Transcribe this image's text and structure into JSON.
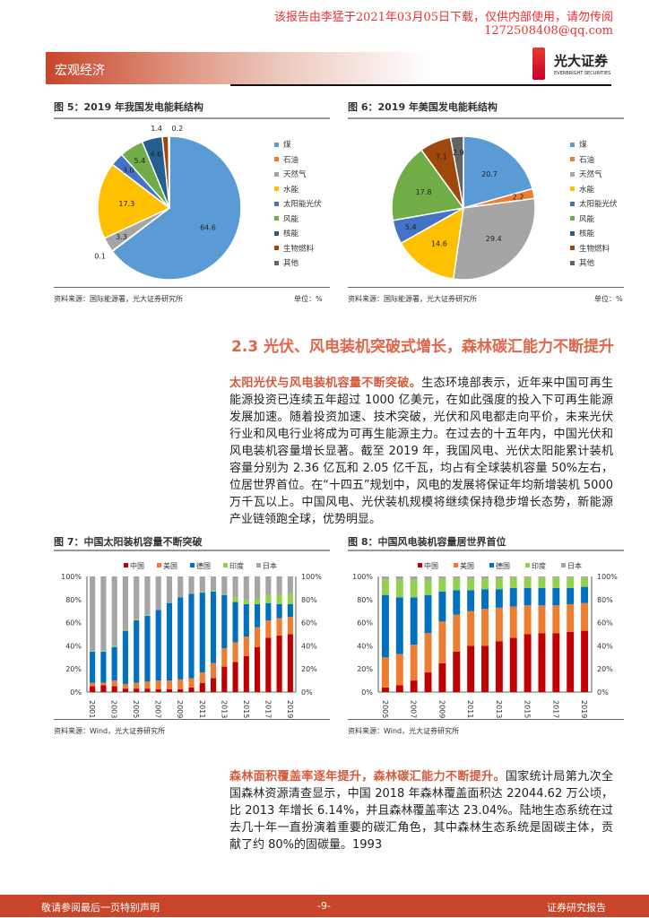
{
  "watermark": {
    "line1": "该报告由李猛于2021年03月05日下载，仅供内部使用，请勿传阅",
    "line2": "1272508408@qq.com"
  },
  "header": {
    "section": "宏观经济",
    "logo_cn": "光大证券",
    "logo_en": "EVERBRIGHT SECURITIES"
  },
  "colors": {
    "accent": "#c8452a",
    "heading": "#e0664a"
  },
  "figures": {
    "fig5": {
      "title": "图 5：2019 年我国发电能耗结构",
      "source": "资料来源：国际能源署，光大证券研究所",
      "unit": "单位：%"
    },
    "fig6": {
      "title": "图 6：2019 年美国发电能耗结构",
      "source": "资料来源：国际能源署，光大证券研究所",
      "unit": "单位：%"
    },
    "fig7": {
      "title": "图 7：中国太阳装机容量不断突破",
      "source": "资料来源：Wind，光大证券研究所"
    },
    "fig8": {
      "title": "图 8：中国风电装机容量居世界首位",
      "source": "资料来源：Wind，光大证券研究所"
    }
  },
  "chart_data": [
    {
      "type": "pie",
      "categories": [
        "煤",
        "石油",
        "天然气",
        "水能",
        "太阳能光伏",
        "风能",
        "核能",
        "生物燃料",
        "其他"
      ],
      "values": [
        64.6,
        0.1,
        3.3,
        17.3,
        3.0,
        5.4,
        4.6,
        1.4,
        0.2
      ],
      "colors": [
        "#5b9bd5",
        "#ed7d31",
        "#a5a5a5",
        "#ffc000",
        "#4472c4",
        "#70ad47",
        "#255e91",
        "#9e480e",
        "#636363"
      ],
      "legend": "right"
    },
    {
      "type": "pie",
      "categories": [
        "煤",
        "石油",
        "天然气",
        "水能",
        "太阳能光伏",
        "风能",
        "核能",
        "生物燃料",
        "其他"
      ],
      "values": [
        20.7,
        2.2,
        29.4,
        14.6,
        5.4,
        17.8,
        0,
        7.1,
        2.9
      ],
      "colors": [
        "#5b9bd5",
        "#ed7d31",
        "#a5a5a5",
        "#ffc000",
        "#4472c4",
        "#70ad47",
        "#255e91",
        "#9e480e",
        "#636363"
      ],
      "legend": "right"
    },
    {
      "type": "bar",
      "stacked": true,
      "percent": true,
      "x": [
        "2001",
        "2002",
        "2003",
        "2004",
        "2005",
        "2006",
        "2007",
        "2008",
        "2009",
        "2010",
        "2011",
        "2012",
        "2013",
        "2014",
        "2015",
        "2016",
        "2017",
        "2018",
        "2019"
      ],
      "xticks": [
        "2001",
        "2003",
        "2005",
        "2007",
        "2009",
        "2011",
        "2013",
        "2015",
        "2017",
        "2019"
      ],
      "yticks": [
        "0%",
        "20%",
        "40%",
        "60%",
        "80%",
        "100%"
      ],
      "ylim": [
        0,
        100
      ],
      "legend": "top",
      "series": [
        {
          "name": "中国",
          "color": "#c00000",
          "values": [
            5,
            6,
            5,
            3,
            3,
            3,
            2.5,
            2.5,
            2.5,
            4,
            8,
            12,
            22,
            26,
            31,
            39,
            47,
            49,
            50
          ]
        },
        {
          "name": "美国",
          "color": "#ed7d31",
          "values": [
            3,
            2,
            5,
            4,
            5,
            6,
            7.5,
            7.5,
            8.5,
            8,
            9,
            13,
            16,
            17,
            17,
            17,
            15,
            15,
            15
          ]
        },
        {
          "name": "德国",
          "color": "#0070c0",
          "values": [
            27,
            27,
            29,
            46,
            54,
            57,
            61,
            67,
            71,
            73,
            69,
            62,
            46,
            35,
            28,
            20,
            15,
            12,
            11
          ]
        },
        {
          "name": "印度",
          "color": "#92d050",
          "values": [
            0.5,
            0.5,
            1,
            1,
            1,
            0.5,
            0,
            0,
            0,
            0,
            1,
            1,
            1,
            4,
            4,
            5,
            7,
            8,
            9
          ]
        },
        {
          "name": "日本",
          "color": "#a5a5a5",
          "values": [
            64.5,
            64.5,
            60,
            46,
            37,
            33.5,
            29,
            23,
            18,
            15,
            13,
            12,
            15,
            18,
            20,
            19,
            16,
            16,
            15
          ]
        }
      ]
    },
    {
      "type": "bar",
      "stacked": true,
      "percent": true,
      "x": [
        "2005",
        "2006",
        "2007",
        "2008",
        "2009",
        "2010",
        "2011",
        "2012",
        "2013",
        "2014",
        "2015",
        "2016",
        "2017",
        "2018",
        "2019"
      ],
      "xticks": [
        "2005",
        "2007",
        "2009",
        "2011",
        "2013",
        "2015",
        "2017",
        "2019"
      ],
      "yticks": [
        "0%",
        "20%",
        "40%",
        "60%",
        "80%",
        "100%"
      ],
      "ylim": [
        0,
        100
      ],
      "legend": "top",
      "series": [
        {
          "name": "中国",
          "color": "#c00000",
          "values": [
            4,
            6,
            10,
            17,
            25,
            35,
            40,
            40,
            44,
            47,
            50,
            51,
            51,
            52,
            53
          ]
        },
        {
          "name": "美国",
          "color": "#ed7d31",
          "values": [
            26,
            27,
            31,
            34,
            36,
            32,
            30,
            32,
            29,
            27,
            25,
            24,
            24,
            24,
            24
          ]
        },
        {
          "name": "德国",
          "color": "#0070c0",
          "values": [
            54,
            49,
            41,
            33,
            26,
            21,
            18,
            17,
            16,
            16,
            15,
            15,
            15,
            14,
            14
          ]
        },
        {
          "name": "印度",
          "color": "#92d050",
          "values": [
            13,
            15,
            15,
            13,
            11,
            10,
            10,
            9,
            9,
            9,
            9,
            9,
            9,
            9,
            8
          ]
        },
        {
          "name": "日本",
          "color": "#a5a5a5",
          "values": [
            3,
            3,
            3,
            3,
            2,
            2,
            2,
            2,
            2,
            1,
            1,
            1,
            1,
            1,
            1
          ]
        }
      ]
    }
  ],
  "section": {
    "heading": "2.3 光伏、风电装机突破式增长，森林碳汇能力不断提升"
  },
  "para1": {
    "lead": "太阳光伏与风电装机容量不断突破。",
    "body": "生态环境部表示，近年来中国可再生能源投资已连续五年超过 1000 亿美元，在如此强度的投入下可再生能源发展加速。随着投资加速、技术突破，光伏和风电都走向平价，未来光伏行业和风电行业将成为可再生能源主力。在过去的十五年内，中国光伏和风电装机容量增长显著。截至 2019 年，我国风电、光伏太阳能累计装机容量分别为 2.36 亿瓦和 2.05 亿千瓦，均占有全球装机容量 50%左右，位居世界首位。在“十四五”规划中，风电的发展将保证年均新增装机 5000 万千瓦以上。中国风电、光伏装机规模将继续保持稳步增长态势，新能源产业链领跑全球，优势明显。"
  },
  "para2": {
    "lead": "森林面积覆盖率逐年提升，森林碳汇能力不断提升。",
    "body": "国家统计局第九次全国森林资源清查显示，中国 2018 年森林覆盖面积达 22044.62 万公顷，比 2013 年增长 6.14%，并且森林覆盖率达 23.04%。陆地生态系统在过去几十年一直扮演着重要的碳汇角色，其中森林生态系统是固碳主体，贡献了约 80%的固碳量。1993"
  },
  "footer": {
    "left": "敬请参阅最后一页特别声明",
    "page": "-9-",
    "right": "证券研究报告"
  }
}
